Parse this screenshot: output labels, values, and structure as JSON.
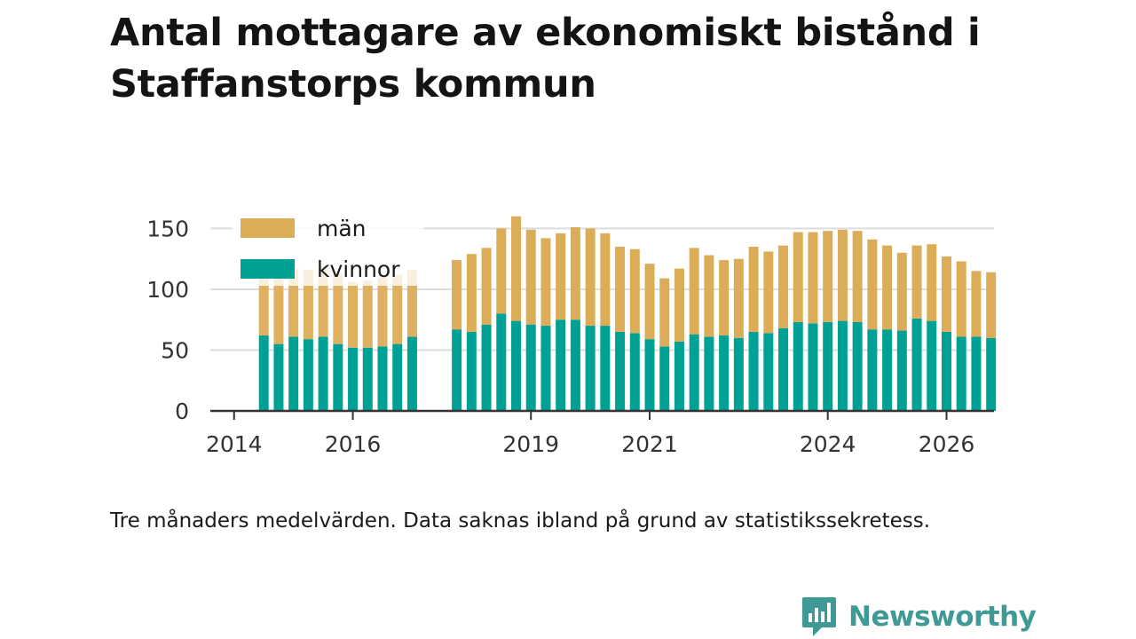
{
  "title": "Antal mottagare av ekonomiskt bistånd i Staffanstorps kommun",
  "caption": "Tre månaders medelvärden. Data saknas ibland på grund av statistikssekretess.",
  "brand": {
    "name": "Newsworthy",
    "color": "#3f9a96",
    "icon": "bar-chart-speech-bubble-icon"
  },
  "chart_data": {
    "type": "bar",
    "stacked": true,
    "title": "Antal mottagare av ekonomiskt bistånd i Staffanstorps kommun",
    "xlabel": "",
    "ylabel": "",
    "x_ticks": [
      "2014",
      "2016",
      "2019",
      "2021",
      "2024",
      "2026"
    ],
    "x_tick_values": [
      2014,
      2016,
      2019,
      2021,
      2024,
      2026
    ],
    "y_ticks": [
      "0",
      "50",
      "100",
      "150"
    ],
    "y_tick_values": [
      0,
      50,
      100,
      150
    ],
    "ylim": [
      0,
      170
    ],
    "xlim": [
      2013.6,
      2026.8
    ],
    "grid": true,
    "legend_position": "top-left",
    "colors": {
      "män": "#dcad58",
      "kvinnor": "#00a195"
    },
    "series": [
      {
        "name": "män",
        "color": "#dcad58",
        "values": [
          52,
          57,
          56,
          57,
          58,
          58,
          54,
          55,
          57,
          57,
          55,
          57,
          64,
          63,
          70,
          86,
          78,
          72,
          71,
          76,
          80,
          76,
          70,
          69,
          62,
          56,
          60,
          71,
          67,
          62,
          65,
          70,
          67,
          68,
          74,
          75,
          75,
          75,
          75,
          74,
          69,
          64,
          60,
          63,
          62,
          62,
          54,
          54
        ]
      },
      {
        "name": "kvinnor",
        "color": "#00a195",
        "values": [
          62,
          55,
          61,
          59,
          61,
          55,
          52,
          52,
          53,
          55,
          61,
          67,
          65,
          71,
          80,
          74,
          71,
          70,
          75,
          75,
          70,
          70,
          65,
          64,
          59,
          53,
          57,
          63,
          61,
          62,
          60,
          65,
          64,
          68,
          73,
          72,
          73,
          74,
          73,
          67,
          67,
          66,
          76,
          74,
          65,
          61,
          61,
          60
        ]
      }
    ],
    "periods": [
      "2014-06",
      "2014-09",
      "2014-12",
      "2015-03",
      "2015-06",
      "2015-09",
      "2015-12",
      "2016-03",
      "2016-06",
      "2016-09",
      "2016-12",
      "2017-09",
      "2017-12",
      "2018-03",
      "2018-06",
      "2018-09",
      "2018-12",
      "2019-03",
      "2019-06",
      "2019-09",
      "2019-12",
      "2020-03",
      "2020-06",
      "2020-09",
      "2020-12",
      "2021-03",
      "2021-06",
      "2021-09",
      "2021-12",
      "2022-03",
      "2022-06",
      "2022-09",
      "2022-12",
      "2023-03",
      "2023-06",
      "2023-09",
      "2023-12",
      "2024-03",
      "2024-06",
      "2024-09",
      "2024-12",
      "2025-03",
      "2025-06",
      "2025-09",
      "2025-12",
      "2026-03",
      "2026-06",
      "2026-09"
    ],
    "x_values": [
      2014.5,
      2014.75,
      2015,
      2015.25,
      2015.5,
      2015.75,
      2016,
      2016.25,
      2016.5,
      2016.75,
      2017,
      2017.75,
      2018,
      2018.25,
      2018.5,
      2018.75,
      2019,
      2019.25,
      2019.5,
      2019.75,
      2020,
      2020.25,
      2020.5,
      2020.75,
      2021,
      2021.25,
      2021.5,
      2021.75,
      2022,
      2022.25,
      2022.5,
      2022.75,
      2023,
      2023.25,
      2023.5,
      2023.75,
      2024,
      2024.25,
      2024.5,
      2024.75,
      2025,
      2025.25,
      2025.5,
      2025.75,
      2026,
      2026.25,
      2026.5,
      2026.75
    ],
    "faded_until_index": 10
  }
}
